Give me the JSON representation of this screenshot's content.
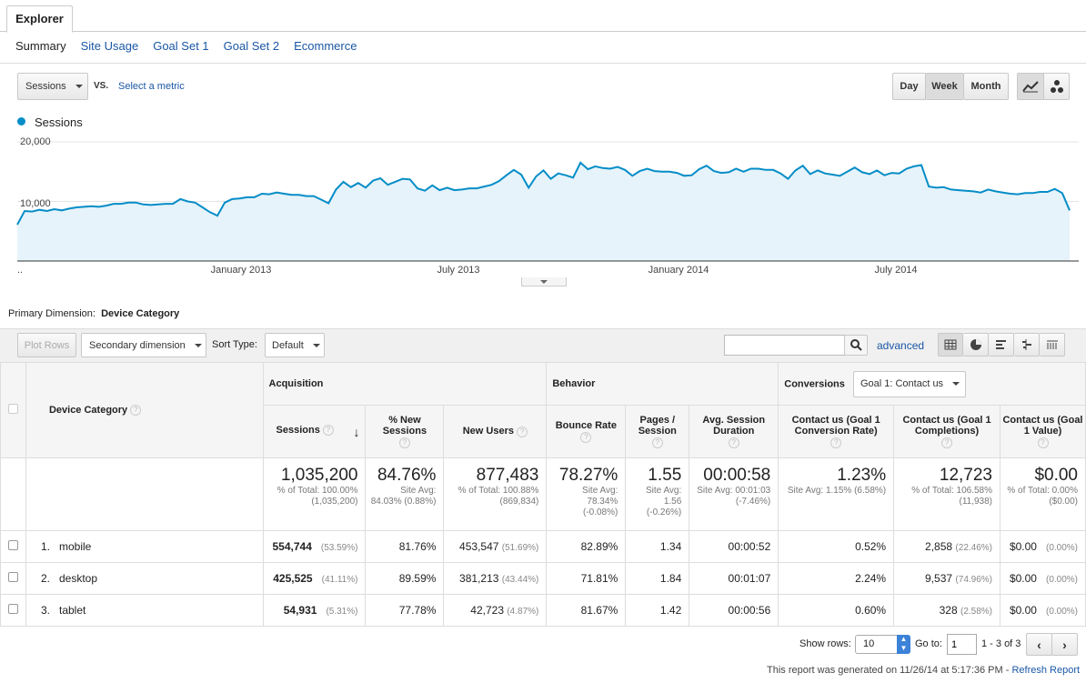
{
  "tab": {
    "label": "Explorer"
  },
  "subnav": [
    "Summary",
    "Site Usage",
    "Goal Set 1",
    "Goal Set 2",
    "Ecommerce"
  ],
  "controls": {
    "metric": "Sessions",
    "vs": "VS.",
    "select_metric": "Select a metric",
    "periods": [
      "Day",
      "Week",
      "Month"
    ],
    "active_period": "Week"
  },
  "colors": {
    "line": "#058dc7",
    "fill": "#e6f3fa",
    "link": "#1a57a5"
  },
  "chart_data": {
    "type": "area",
    "series": [
      {
        "name": "Sessions",
        "values": [
          6100,
          8400,
          8300,
          8600,
          8400,
          8700,
          8500,
          8800,
          9000,
          9100,
          9200,
          9100,
          9300,
          9600,
          9600,
          9800,
          9800,
          9500,
          9400,
          9500,
          9600,
          9600,
          10400,
          10000,
          9800,
          9000,
          8200,
          7600,
          9800,
          10400,
          10500,
          10700,
          10700,
          11300,
          11200,
          11500,
          11300,
          11100,
          11100,
          10900,
          10900,
          10300,
          9700,
          12000,
          13300,
          12400,
          13100,
          12300,
          13500,
          13900,
          12800,
          13300,
          13800,
          13700,
          12200,
          11800,
          12700,
          11900,
          12300,
          11900,
          12000,
          12200,
          12200,
          12500,
          12800,
          13400,
          14400,
          15300,
          14500,
          12300,
          14200,
          15200,
          13800,
          14700,
          14400,
          14000,
          16500,
          15400,
          15900,
          15600,
          15500,
          15800,
          15300,
          14300,
          15100,
          15500,
          15100,
          15000,
          15000,
          14800,
          14300,
          14400,
          15400,
          16000,
          15100,
          14800,
          14900,
          15500,
          15000,
          15500,
          15500,
          15300,
          15300,
          14700,
          13800,
          15200,
          16000,
          14600,
          15200,
          14700,
          14500,
          14300,
          15000,
          15700,
          14900,
          14600,
          15200,
          14400,
          14800,
          14700,
          15500,
          15900,
          16100,
          12500,
          12300,
          12400,
          12000,
          11900,
          11800,
          11700,
          11500,
          12000,
          11700,
          11500,
          11300,
          11200,
          11400,
          11400,
          11600,
          11600,
          12100,
          11400,
          8500
        ]
      }
    ],
    "yticks": [
      "20,000",
      "10,000"
    ],
    "ylim": [
      0,
      20000
    ],
    "xticks": [
      "..",
      "January 2013",
      "July 2013",
      "January 2014",
      "July 2014"
    ],
    "grid": true
  },
  "primary_dimension": {
    "label": "Primary Dimension:",
    "value": "Device Category"
  },
  "toolbar": {
    "plot_rows": "Plot Rows",
    "secondary": "Secondary dimension",
    "sort_label": "Sort Type:",
    "sort_value": "Default",
    "search_value": "",
    "advanced": "advanced"
  },
  "table": {
    "dim_header": "Device Category",
    "groups": {
      "acq": "Acquisition",
      "beh": "Behavior",
      "conv": "Conversions",
      "goal": "Goal 1: Contact us"
    },
    "columns": [
      "Sessions",
      "% New Sessions",
      "New Users",
      "Bounce Rate",
      "Pages / Session",
      "Avg. Session Duration",
      "Contact us (Goal 1 Conversion Rate)",
      "Contact us (Goal 1 Completions)",
      "Contact us (Goal 1 Value)"
    ],
    "totals": [
      {
        "v": "1,035,200",
        "s": "% of Total: 100.00% (1,035,200)"
      },
      {
        "v": "84.76%",
        "s": "Site Avg: 84.03% (0.88%)"
      },
      {
        "v": "877,483",
        "s": "% of Total: 100.88% (869,834)"
      },
      {
        "v": "78.27%",
        "s": "Site Avg: 78.34% (-0.08%)"
      },
      {
        "v": "1.55",
        "s": "Site Avg: 1.56 (-0.26%)"
      },
      {
        "v": "00:00:58",
        "s": "Site Avg: 00:01:03 (-7.46%)"
      },
      {
        "v": "1.23%",
        "s": "Site Avg: 1.15% (6.58%)"
      },
      {
        "v": "12,723",
        "s": "% of Total: 106.58% (11,938)"
      },
      {
        "v": "$0.00",
        "s": "% of Total: 0.00% ($0.00)"
      }
    ],
    "rows": [
      {
        "n": "1.",
        "name": "mobile",
        "c": [
          "554,744",
          "(53.59%)",
          "81.76%",
          "453,547",
          "(51.69%)",
          "82.89%",
          "1.34",
          "00:00:52",
          "0.52%",
          "2,858",
          "(22.46%)",
          "$0.00",
          "(0.00%)"
        ]
      },
      {
        "n": "2.",
        "name": "desktop",
        "c": [
          "425,525",
          "(41.11%)",
          "89.59%",
          "381,213",
          "(43.44%)",
          "71.81%",
          "1.84",
          "00:01:07",
          "2.24%",
          "9,537",
          "(74.96%)",
          "$0.00",
          "(0.00%)"
        ]
      },
      {
        "n": "3.",
        "name": "tablet",
        "c": [
          "54,931",
          "(5.31%)",
          "77.78%",
          "42,723",
          "(4.87%)",
          "81.67%",
          "1.42",
          "00:00:56",
          "0.60%",
          "328",
          "(2.58%)",
          "$0.00",
          "(0.00%)"
        ]
      }
    ]
  },
  "pager": {
    "show_rows": "Show rows:",
    "rows": "10",
    "goto": "Go to:",
    "page": "1",
    "range": "1 - 3 of 3"
  },
  "footer": {
    "text": "This report was generated on 11/26/14 at 5:17:36 PM -",
    "refresh": "Refresh Report"
  }
}
